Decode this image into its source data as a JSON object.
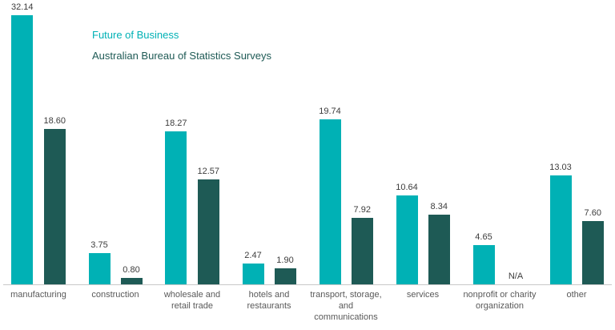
{
  "chart_data": {
    "type": "bar",
    "title": "",
    "xlabel": "",
    "ylabel": "",
    "ylim": [
      0,
      33
    ],
    "grid": false,
    "legend_position": "top-left",
    "na_label": "N/A",
    "categories": [
      "manufacturing",
      "construction",
      "wholesale and retail trade",
      "hotels and restaurants",
      "transport, storage, and communications",
      "services",
      "nonprofit or charity organization",
      "other"
    ],
    "series": [
      {
        "name": "Future of Business",
        "color": "#00b1b5",
        "values": [
          32.14,
          3.75,
          18.27,
          2.47,
          19.74,
          10.64,
          4.65,
          13.03
        ]
      },
      {
        "name": "Australian Bureau of Statistics Surveys",
        "color": "#1e5a55",
        "values": [
          18.6,
          0.8,
          12.57,
          1.9,
          7.92,
          8.34,
          null,
          7.6
        ]
      }
    ]
  }
}
